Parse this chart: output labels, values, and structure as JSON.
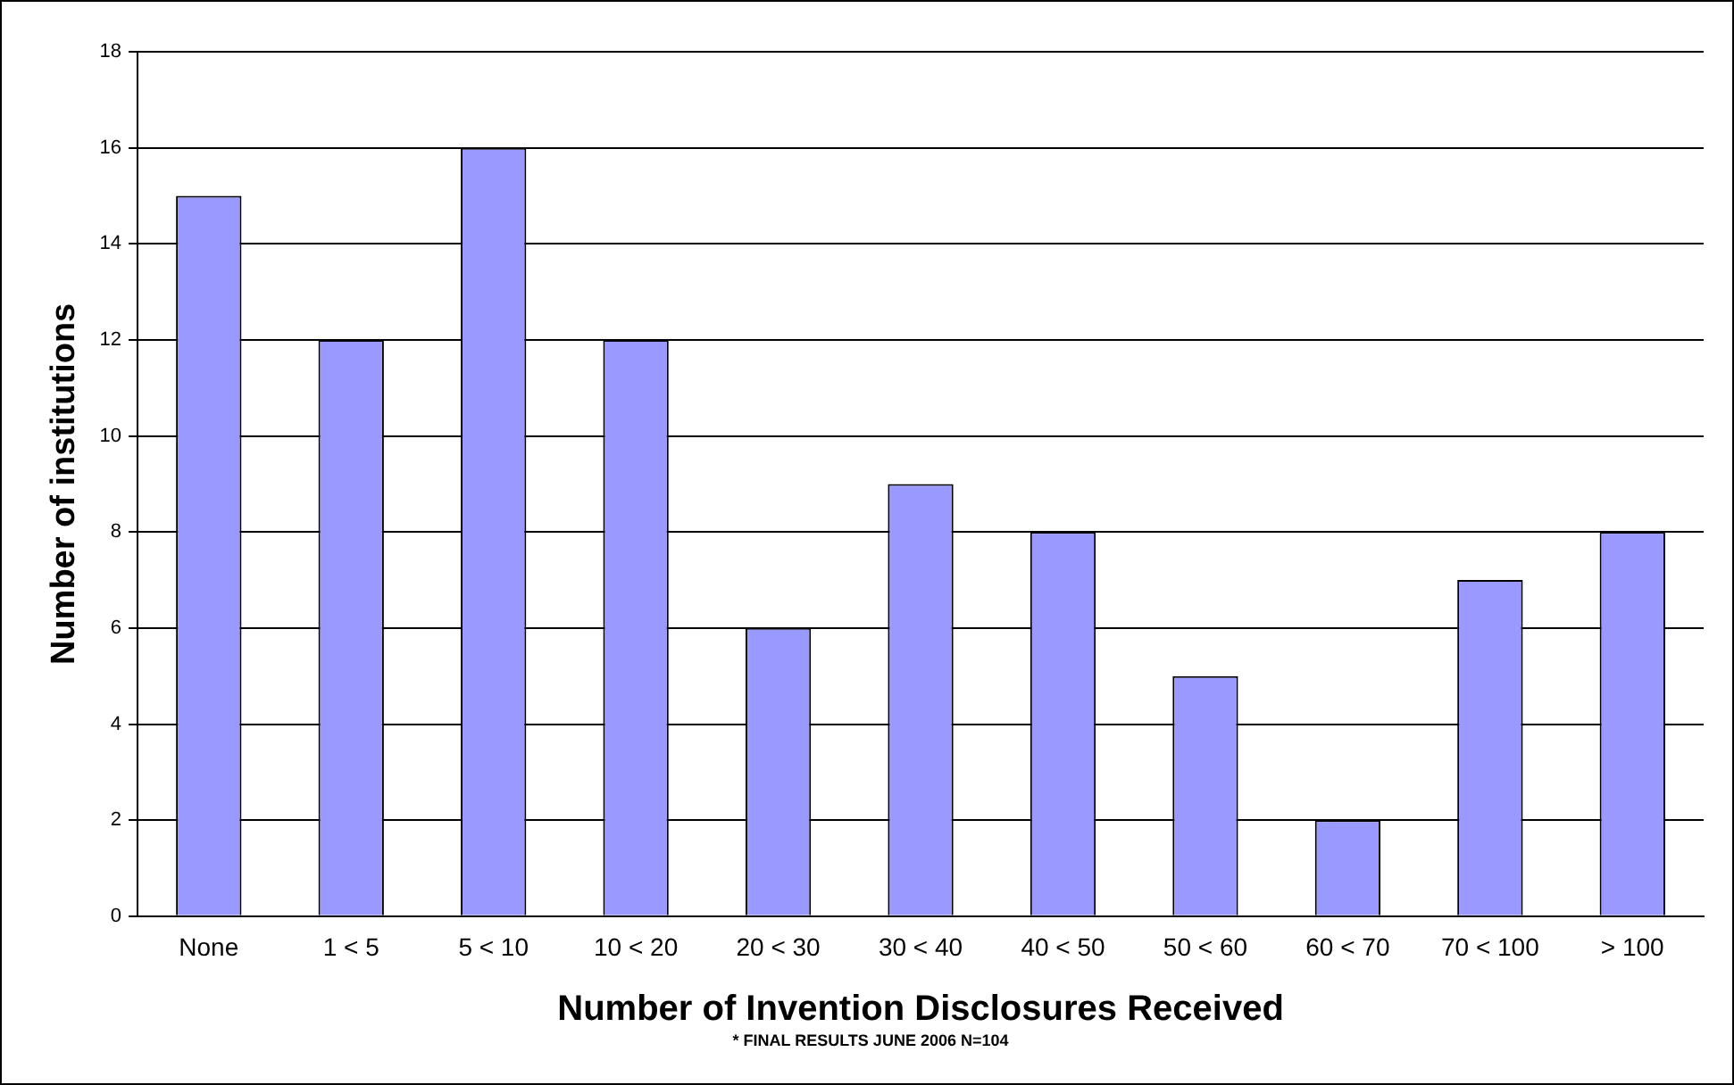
{
  "chart_data": {
    "type": "bar",
    "xlabel": "Number of Invention Disclosures Received",
    "ylabel": "Number of institutions",
    "annotations": [
      "* FINAL RESULTS JUNE 2006 N=104"
    ],
    "categories": [
      "None",
      "1 < 5",
      "5 < 10",
      "10 < 20",
      "20 < 30",
      "30 < 40",
      "40 < 50",
      "50 < 60",
      "60 < 70",
      "70 < 100",
      "> 100"
    ],
    "values": [
      15,
      12,
      16,
      12,
      6,
      9,
      8,
      5,
      2,
      7,
      8
    ],
    "color": "#9999ff",
    "ylim": [
      0,
      18
    ],
    "yticks": [
      0,
      2,
      4,
      6,
      8,
      10,
      12,
      14,
      16,
      18
    ],
    "grid": "y",
    "legend": false
  }
}
